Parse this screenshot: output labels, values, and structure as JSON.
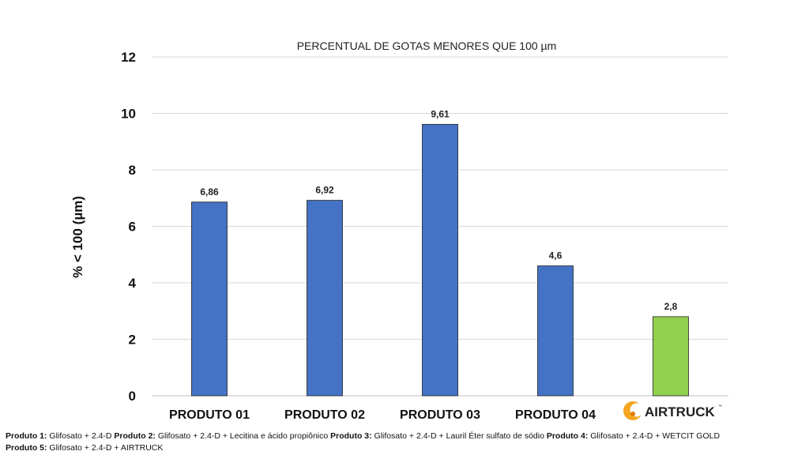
{
  "chart_data": {
    "type": "bar",
    "title": "PERCENTUAL DE GOTAS MENORES QUE 100 µm",
    "ylabel": "% < 100 (µm)",
    "xlabel": "",
    "ylim": [
      0,
      12
    ],
    "y_ticks": [
      0,
      2,
      4,
      6,
      8,
      10,
      12
    ],
    "grid": true,
    "categories": [
      "PRODUTO 01",
      "PRODUTO 02",
      "PRODUTO 03",
      "PRODUTO 04",
      "AIRTRUCK"
    ],
    "values": [
      6.86,
      6.92,
      9.61,
      4.6,
      2.8
    ],
    "value_labels": [
      "6,86",
      "6,92",
      "9,61",
      "4,6",
      "2,8"
    ],
    "bar_colors": [
      "#4472c4",
      "#4472c4",
      "#4472c4",
      "#4472c4",
      "#92d050"
    ],
    "logo_category_index": 4,
    "logo_trademark": "™"
  },
  "legend": [
    {
      "name": "Produto 1:",
      "desc": "Glifosato + 2.4-D"
    },
    {
      "name": "Produto 2:",
      "desc": "Glifosato + 2.4-D + Lecitina e ácido propiônico"
    },
    {
      "name": "Produto 3:",
      "desc": "Glifosato + 2.4-D + Lauril Éter sulfato de sódio"
    },
    {
      "name": "Produto 4:",
      "desc": "Glifosato + 2.4-D + WETCIT GOLD"
    },
    {
      "name": "Produto 5:",
      "desc": "Glifosato + 2.4-D + AIRTRUCK"
    }
  ],
  "colors": {
    "grid": "#d9d9d9",
    "axis": "#bfbfbf",
    "logo_orange": "#f5a623",
    "logo_orange_dark": "#e07b00"
  }
}
